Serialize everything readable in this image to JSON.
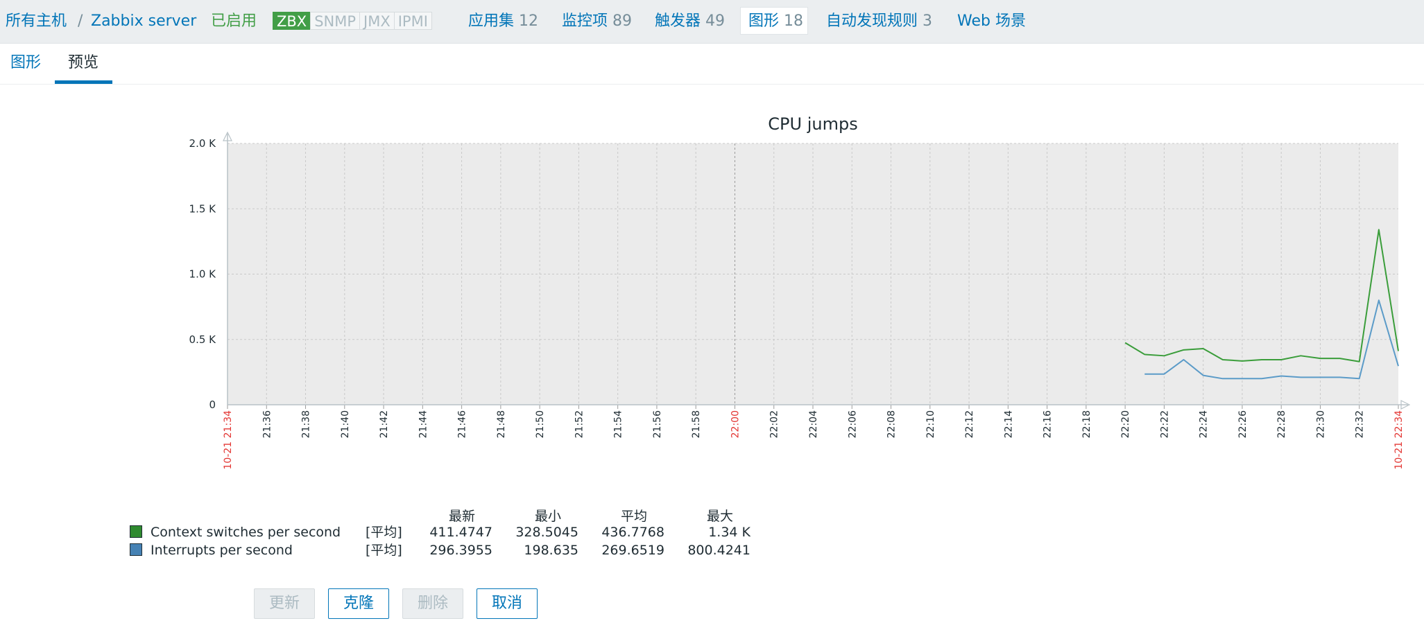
{
  "breadcrumb": {
    "all_hosts": "所有主机",
    "separator": "/",
    "host": "Zabbix server",
    "status": "已启用"
  },
  "availability": [
    "ZBX",
    "SNMP",
    "JMX",
    "IPMI"
  ],
  "host_tabs": [
    {
      "label": "应用集",
      "count": "12"
    },
    {
      "label": "监控项",
      "count": "89"
    },
    {
      "label": "触发器",
      "count": "49"
    },
    {
      "label": "图形",
      "count": "18"
    },
    {
      "label": "自动发现规则",
      "count": "3"
    },
    {
      "label": "Web 场景",
      "count": ""
    }
  ],
  "sub_tabs": [
    "图形",
    "预览"
  ],
  "chart_data": {
    "type": "line",
    "title": "CPU jumps",
    "ylim": [
      0,
      2000
    ],
    "y_ticks": [
      "0",
      "0.5 K",
      "1.0 K",
      "1.5 K",
      "2.0 K"
    ],
    "x_tick_labels": [
      "10-21 21:34",
      "21:36",
      "21:38",
      "21:40",
      "21:42",
      "21:44",
      "21:46",
      "21:48",
      "21:50",
      "21:52",
      "21:54",
      "21:56",
      "21:58",
      "22:00",
      "22:02",
      "22:04",
      "22:06",
      "22:08",
      "22:10",
      "22:12",
      "22:14",
      "22:16",
      "22:18",
      "22:20",
      "22:22",
      "22:24",
      "22:26",
      "22:28",
      "22:30",
      "22:32",
      "10-21 22:34"
    ],
    "x_minutes": [
      0,
      2,
      4,
      6,
      8,
      10,
      12,
      14,
      16,
      18,
      20,
      22,
      24,
      26,
      28,
      30,
      32,
      34,
      36,
      38,
      40,
      42,
      44,
      46,
      48,
      50,
      52,
      54,
      56,
      58,
      60
    ],
    "red_ticks": [
      "10-21 21:34",
      "22:00",
      "10-21 22:34"
    ],
    "grid": true,
    "series": [
      {
        "name": "Context switches per second",
        "color": "#3a9d3a",
        "x": [
          46,
          47,
          48,
          49,
          50,
          51,
          52,
          53,
          54,
          55,
          56,
          57,
          58,
          59,
          60
        ],
        "values": [
          475,
          385,
          375,
          420,
          430,
          345,
          335,
          345,
          345,
          375,
          355,
          355,
          330,
          1340,
          411
        ]
      },
      {
        "name": "Interrupts per second",
        "color": "#5b9bc8",
        "x": [
          47,
          48,
          49,
          50,
          51,
          52,
          53,
          54,
          55,
          56,
          57,
          58,
          59,
          60
        ],
        "values": [
          235,
          235,
          345,
          225,
          200,
          200,
          200,
          220,
          210,
          210,
          210,
          200,
          800,
          296
        ]
      }
    ]
  },
  "legend": {
    "headers": [
      "最新",
      "最小",
      "平均",
      "最大"
    ],
    "rows": [
      {
        "color": "#2f8a2f",
        "name": "Context switches per second",
        "fn": "[平均]",
        "last": "411.4747",
        "min": "328.5045",
        "avg": "436.7768",
        "max": "1.34 K"
      },
      {
        "color": "#4682b4",
        "name": "Interrupts per second",
        "fn": "[平均]",
        "last": "296.3955",
        "min": "198.635",
        "avg": "269.6519",
        "max": "800.4241"
      }
    ]
  },
  "buttons": {
    "update": "更新",
    "clone": "克隆",
    "delete": "删除",
    "cancel": "取消"
  }
}
